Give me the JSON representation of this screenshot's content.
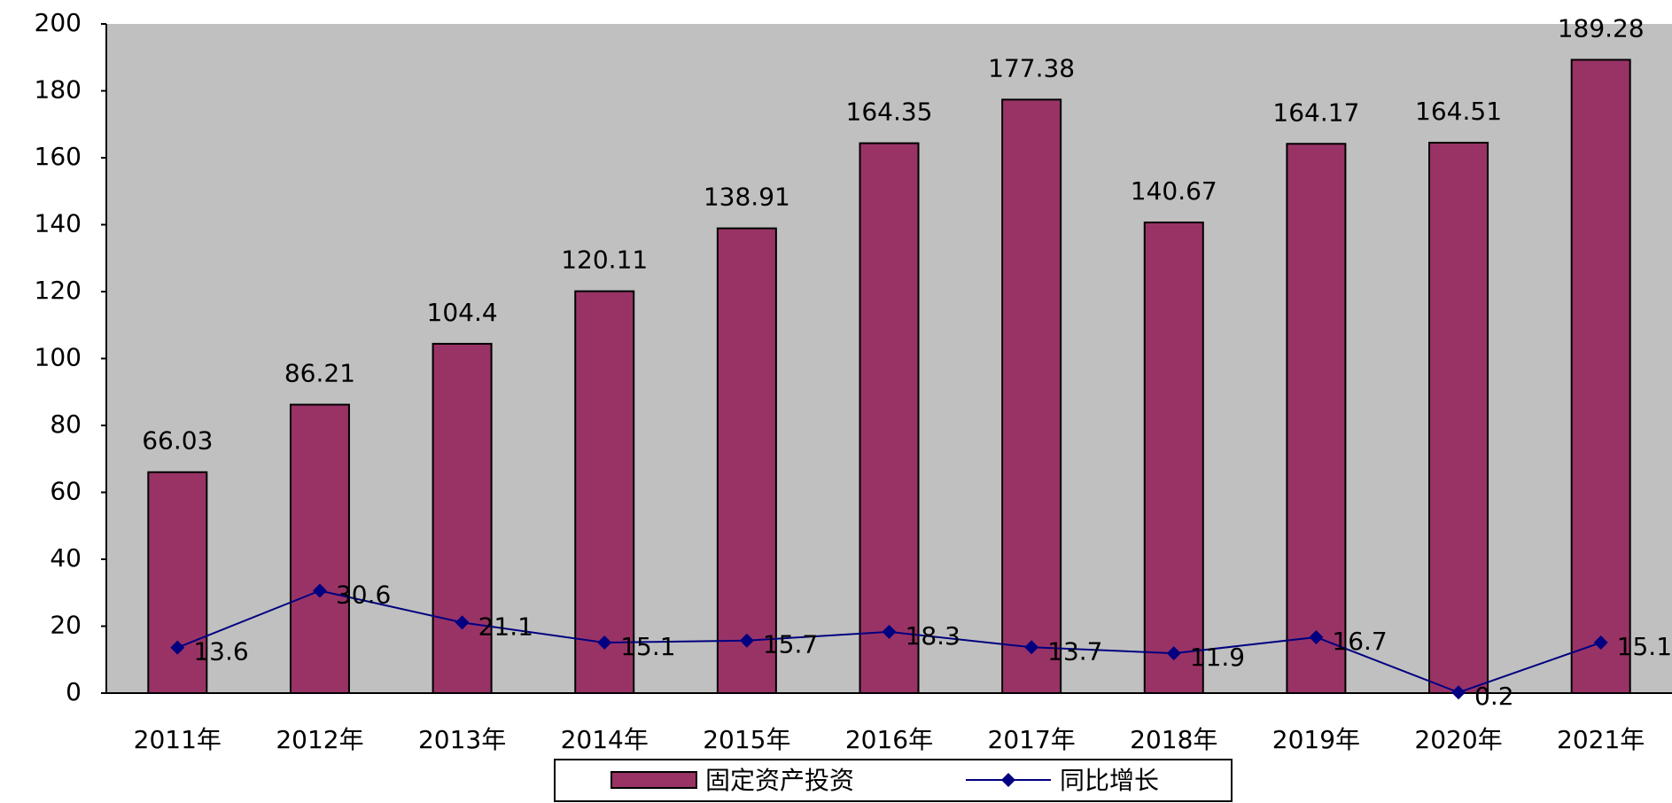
{
  "chart_data": {
    "type": "bar",
    "categories": [
      "2011年",
      "2012年",
      "2013年",
      "2014年",
      "2015年",
      "2016年",
      "2017年",
      "2018年",
      "2019年",
      "2020年",
      "2021年"
    ],
    "series": [
      {
        "name": "固定资产投资",
        "type": "bar",
        "color": "#993366",
        "values": [
          66.03,
          86.21,
          104.4,
          120.11,
          138.91,
          164.35,
          177.38,
          140.67,
          164.17,
          164.51,
          189.28
        ]
      },
      {
        "name": "同比增长",
        "type": "line",
        "color": "#000080",
        "values": [
          13.6,
          30.6,
          21.1,
          15.1,
          15.7,
          18.3,
          13.7,
          11.9,
          16.7,
          0.2,
          15.1
        ]
      }
    ],
    "ylim": [
      0,
      200
    ],
    "yticks": [
      0,
      20,
      40,
      60,
      80,
      100,
      120,
      140,
      160,
      180,
      200
    ],
    "plot_background": "#c0c0c0",
    "legend": "bottom"
  }
}
